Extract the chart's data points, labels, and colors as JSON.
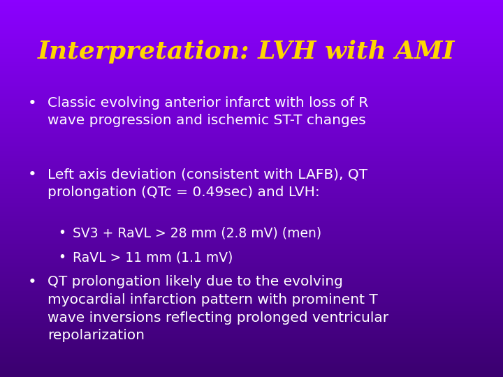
{
  "title": "Interpretation: LVH with AMI",
  "title_color": "#FFD700",
  "title_fontsize": 26,
  "bg_color_top": "#8B00FF",
  "bg_color_bottom": "#3B0070",
  "text_color": "#FFFFFF",
  "bullet_color": "#FFFFFF",
  "body_fontsize": 14.5,
  "sub_bullet_fontsize": 13.5,
  "figwidth": 7.2,
  "figheight": 5.4,
  "dpi": 100,
  "bullets": [
    "Classic evolving anterior infarct with loss of R\nwave progression and ischemic ST-T changes",
    "Left axis deviation (consistent with LAFB), QT\nprolongation (QTc = 0.49sec) and LVH:"
  ],
  "sub_bullets": [
    "SV3 + RaVL > 28 mm (2.8 mV) (men)",
    "RaVL > 11 mm (1.1 mV)"
  ],
  "last_bullet": "QT prolongation likely due to the evolving\nmyocardial infarction pattern with prominent T\nwave inversions reflecting prolonged ventricular\nrepolarization"
}
